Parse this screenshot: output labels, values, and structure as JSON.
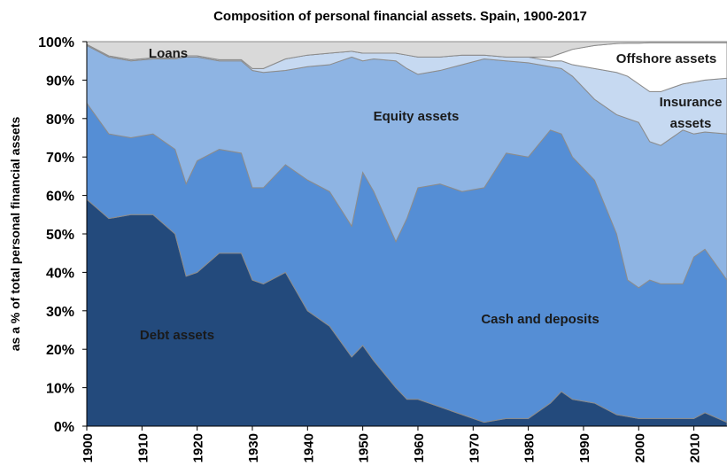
{
  "chart_data": {
    "type": "stacked_area",
    "title": "Composition of personal financial assets. Spain, 1900-2017",
    "y_label": "as a % of total personal financial assets",
    "x": [
      1900,
      1904,
      1908,
      1912,
      1916,
      1918,
      1920,
      1924,
      1928,
      1930,
      1932,
      1936,
      1940,
      1944,
      1948,
      1950,
      1952,
      1956,
      1958,
      1960,
      1964,
      1968,
      1972,
      1976,
      1980,
      1984,
      1986,
      1988,
      1992,
      1996,
      1998,
      2000,
      2002,
      2004,
      2008,
      2010,
      2012,
      2016
    ],
    "series": [
      {
        "name": "Debt assets",
        "color": "#234a7c",
        "values": [
          59,
          54,
          55,
          55,
          50,
          39,
          40,
          45,
          45,
          38,
          37,
          40,
          30,
          26,
          18,
          21,
          17,
          10,
          7,
          7,
          5,
          3,
          1,
          2,
          2,
          6,
          9,
          7,
          6,
          3,
          2.5,
          2,
          2,
          2,
          2,
          2,
          3.5,
          1
        ]
      },
      {
        "name": "Cash and deposits",
        "color": "#558ed5",
        "values": [
          25,
          22,
          20,
          21,
          22,
          24,
          29,
          27,
          26,
          24,
          25,
          28,
          34,
          35,
          34,
          45,
          44,
          38,
          47,
          55,
          58,
          58,
          61,
          69,
          68,
          71,
          67,
          63,
          58,
          47,
          35.5,
          34,
          36,
          35,
          35,
          42,
          42.5,
          37
        ]
      },
      {
        "name": "Equity assets",
        "color": "#8eb4e3",
        "values": [
          15,
          20,
          20,
          19.5,
          23.5,
          33,
          27,
          23,
          24,
          30.5,
          30,
          24.5,
          29.5,
          33,
          44,
          29,
          34.5,
          47,
          39,
          29.5,
          29.5,
          33,
          33.5,
          24,
          24.5,
          16.5,
          17,
          21,
          21,
          31,
          42,
          43,
          36,
          36,
          40,
          32,
          30.5,
          38
        ]
      },
      {
        "name": "Insurance assets",
        "color": "#c6d9f1",
        "values": [
          0.3,
          0.3,
          0.3,
          0.3,
          0.3,
          0.3,
          0.3,
          0.3,
          0.3,
          0.5,
          1,
          3,
          3,
          3,
          1.5,
          2,
          1.5,
          2,
          3.5,
          4.5,
          3.5,
          2.5,
          1,
          1,
          1.5,
          1.5,
          2,
          3,
          8,
          11,
          11,
          10,
          13,
          14,
          12,
          13.5,
          13.5,
          14.5
        ]
      },
      {
        "name": "Offshore assets",
        "color": "#ffffff",
        "values": [
          0,
          0,
          0,
          0,
          0,
          0,
          0,
          0,
          0,
          0,
          0,
          0,
          0,
          0,
          0,
          0,
          0,
          0,
          0,
          0,
          0,
          0,
          0,
          0,
          0,
          1,
          2,
          4,
          6,
          7.5,
          8.6,
          10.6,
          12.7,
          12.7,
          10.7,
          10.2,
          9.7,
          9.2
        ]
      },
      {
        "name": "Loans",
        "color": "#d9d9d9",
        "values": [
          0.7,
          3.7,
          4.7,
          4.2,
          4.2,
          3.7,
          3.7,
          4.7,
          4.7,
          7,
          7,
          4.5,
          3.5,
          3,
          2.5,
          3,
          3,
          3,
          3.5,
          4,
          4,
          3.5,
          3.5,
          4,
          4,
          4,
          3,
          2,
          1,
          0.5,
          0.4,
          0.4,
          0.3,
          0.3,
          0.3,
          0.3,
          0.3,
          0.3
        ]
      }
    ],
    "xlim": [
      1900,
      2016
    ],
    "xticks": [
      1900,
      1910,
      1920,
      1930,
      1940,
      1950,
      1960,
      1970,
      1980,
      1990,
      2000,
      2010
    ],
    "ylim": [
      0,
      100
    ],
    "yticks": [
      {
        "value": 0,
        "label": "0%"
      },
      {
        "value": 10,
        "label": "10%"
      },
      {
        "value": 20,
        "label": "20%"
      },
      {
        "value": 30,
        "label": "30%"
      },
      {
        "value": 40,
        "label": "40%"
      },
      {
        "value": 50,
        "label": "50%"
      },
      {
        "value": 60,
        "label": "60%"
      },
      {
        "value": 70,
        "label": "70%"
      },
      {
        "value": 80,
        "label": "80%"
      },
      {
        "value": 90,
        "label": "90%"
      },
      {
        "value": 100,
        "label": "100%"
      }
    ]
  }
}
